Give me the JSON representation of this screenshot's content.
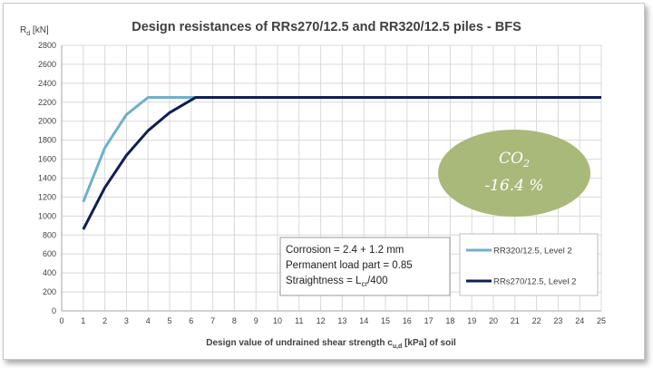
{
  "chart_data": {
    "type": "line",
    "title": "Design resistances of RRs270/12.5 and RR320/12.5 piles - BFS",
    "ylabel_main": "R",
    "ylabel_sub": "d",
    "ylabel_unit": " [kN]",
    "xlabel_pre": "Design value of undrained shear strength c",
    "xlabel_sub": "u,d",
    "xlabel_post": " [kPa]  of soil",
    "xlim": [
      0,
      25
    ],
    "ylim": [
      0,
      2800
    ],
    "x_ticks": [
      0,
      1,
      2,
      3,
      4,
      5,
      6,
      7,
      8,
      9,
      10,
      11,
      12,
      13,
      14,
      15,
      16,
      17,
      18,
      19,
      20,
      21,
      22,
      23,
      24,
      25
    ],
    "y_ticks": [
      0,
      200,
      400,
      600,
      800,
      1000,
      1200,
      1400,
      1600,
      1800,
      2000,
      2200,
      2400,
      2600,
      2800
    ],
    "grid": true,
    "series": [
      {
        "name": "RR320/12.5, Level 2",
        "color": "#6fb0cc",
        "x": [
          1,
          2,
          3,
          4,
          25
        ],
        "y": [
          1150,
          1720,
          2070,
          2250,
          2250
        ]
      },
      {
        "name": "RRs270/12.5, Level 2",
        "color": "#0f1f55",
        "x": [
          1,
          2,
          3,
          4,
          5,
          6.2,
          25
        ],
        "y": [
          860,
          1300,
          1640,
          1900,
          2090,
          2250,
          2250
        ]
      }
    ],
    "annotation": {
      "line1": "Corrosion = 2.4 + 1.2 mm",
      "line2": "Permanent load part = 0.85",
      "line3_pre": "Straightness = L",
      "line3_sub": "cr",
      "line3_post": "/400"
    },
    "badge": {
      "line1_main": "CO",
      "line1_sub": "2",
      "line2": "-16.4 %",
      "color": "#a9b97a"
    },
    "legend_position": "bottom-right"
  }
}
